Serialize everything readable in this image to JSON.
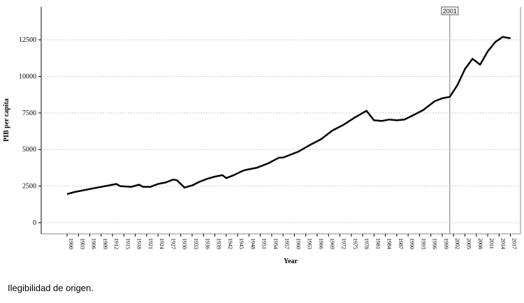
{
  "chart_data": {
    "type": "line",
    "xlabel": "Year",
    "ylabel": "PIB per capita",
    "xlim": [
      1900,
      2018
    ],
    "ylim": [
      -500,
      14500
    ],
    "yticks": [
      0,
      2500,
      5000,
      7500,
      10000,
      12500
    ],
    "ytick_labels": [
      "0",
      "2500",
      "5000",
      "7500",
      "10000",
      "12500"
    ],
    "xticks": [
      1900,
      1903,
      1906,
      1909,
      1912,
      1915,
      1918,
      1921,
      1924,
      1927,
      1930,
      1933,
      1936,
      1939,
      1942,
      1945,
      1948,
      1951,
      1954,
      1957,
      1960,
      1963,
      1966,
      1969,
      1972,
      1975,
      1978,
      1981,
      1984,
      1987,
      1990,
      1993,
      1996,
      1999,
      2002,
      2005,
      2008,
      2011,
      2014,
      2017
    ],
    "xtick_labels": [
      "1900",
      "1903",
      "1906",
      "1909",
      "1912",
      "1915",
      "1918",
      "1921",
      "1924",
      "1927",
      "1930",
      "1933",
      "1936",
      "1939",
      "1942",
      "1945",
      "1948",
      "1951",
      "1954",
      "1957",
      "1960",
      "1963",
      "1966",
      "1969",
      "1972",
      "1975",
      "1978",
      "1981",
      "1984",
      "1987",
      "1990",
      "1993",
      "1996",
      "1999",
      "2002",
      "2005",
      "2008",
      "2011",
      "2014",
      "2017"
    ],
    "grid": "horizontal",
    "reference_line": {
      "x": 2001,
      "label": "2001"
    },
    "series": [
      {
        "x": [
          1900,
          1902,
          1905,
          1908,
          1911,
          1913,
          1914,
          1917,
          1919,
          1920,
          1922,
          1924,
          1926,
          1928,
          1929,
          1931,
          1933,
          1935,
          1937,
          1939,
          1941,
          1942,
          1944,
          1946,
          1947,
          1950,
          1953,
          1956,
          1957,
          1959,
          1961,
          1964,
          1967,
          1970,
          1973,
          1976,
          1979,
          1981,
          1983,
          1985,
          1987,
          1989,
          1991,
          1994,
          1997,
          1999,
          2001,
          2003,
          2005,
          2007,
          2009,
          2011,
          2013,
          2015,
          2017
        ],
        "y": [
          1950,
          2100,
          2250,
          2400,
          2550,
          2650,
          2500,
          2450,
          2600,
          2450,
          2450,
          2650,
          2750,
          2950,
          2900,
          2400,
          2550,
          2800,
          3000,
          3150,
          3250,
          3050,
          3250,
          3500,
          3600,
          3750,
          4050,
          4450,
          4450,
          4650,
          4850,
          5300,
          5700,
          6300,
          6700,
          7200,
          7650,
          7000,
          6950,
          7050,
          7000,
          7050,
          7300,
          7700,
          8300,
          8500,
          8600,
          9400,
          10500,
          11200,
          10800,
          11700,
          12350,
          12700,
          12600
        ]
      }
    ]
  },
  "caption": "Ilegibilidad de origen."
}
